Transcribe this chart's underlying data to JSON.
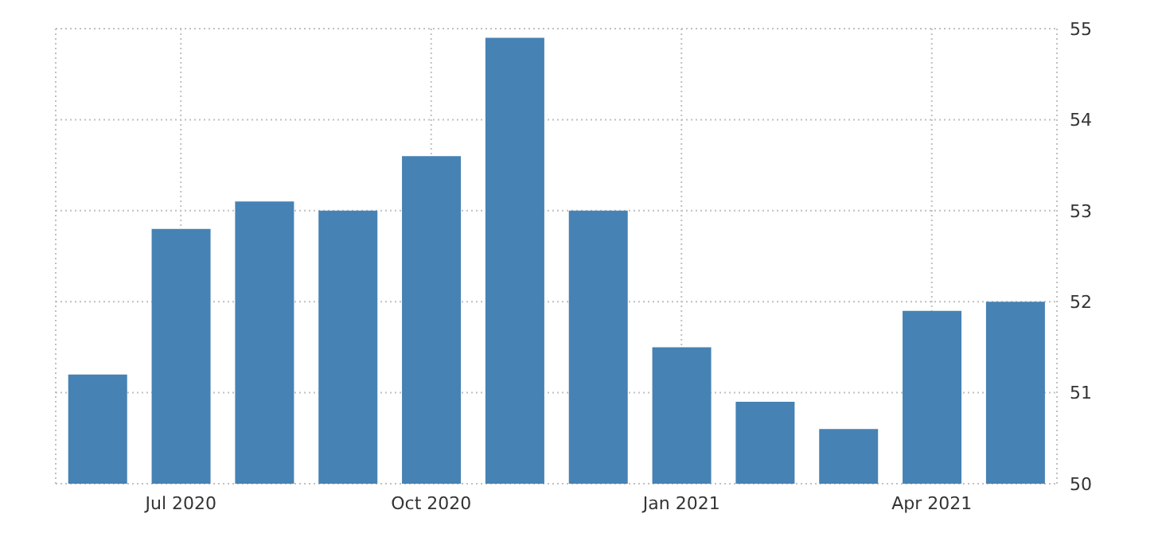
{
  "chart_data": {
    "type": "bar",
    "categories": [
      null,
      "Jul 2020",
      null,
      null,
      "Oct 2020",
      null,
      null,
      "Jan 2021",
      null,
      null,
      "Apr 2021",
      null
    ],
    "values": [
      51.2,
      52.8,
      53.1,
      53.0,
      53.6,
      54.9,
      53.0,
      51.5,
      50.9,
      50.6,
      51.9,
      52.0
    ],
    "color": "#4682b4",
    "ylim": [
      50,
      55
    ],
    "yticks": [
      50,
      51,
      52,
      53,
      54,
      55
    ],
    "grid": true
  }
}
